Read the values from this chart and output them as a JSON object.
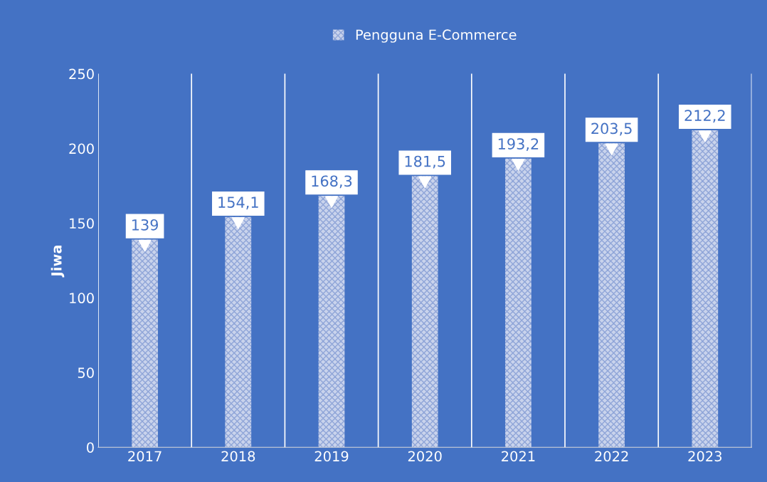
{
  "chart_data": {
    "type": "bar",
    "ylabel": "Jiwa",
    "categories": [
      "2017",
      "2018",
      "2019",
      "2020",
      "2021",
      "2022",
      "2023"
    ],
    "series": [
      {
        "name": "Pengguna E-Commerce",
        "color": "#c9d3ec",
        "values": [
          139,
          154.1,
          168.3,
          181.5,
          193.2,
          203.5,
          212.2
        ],
        "value_labels": [
          "139",
          "154,1",
          "168,3",
          "181,5",
          "193,2",
          "203,5",
          "212,2"
        ]
      }
    ],
    "ylim": [
      0,
      250
    ],
    "yticks": [
      0,
      50,
      100,
      150,
      200,
      250
    ],
    "grid": "x",
    "legend": "top"
  }
}
